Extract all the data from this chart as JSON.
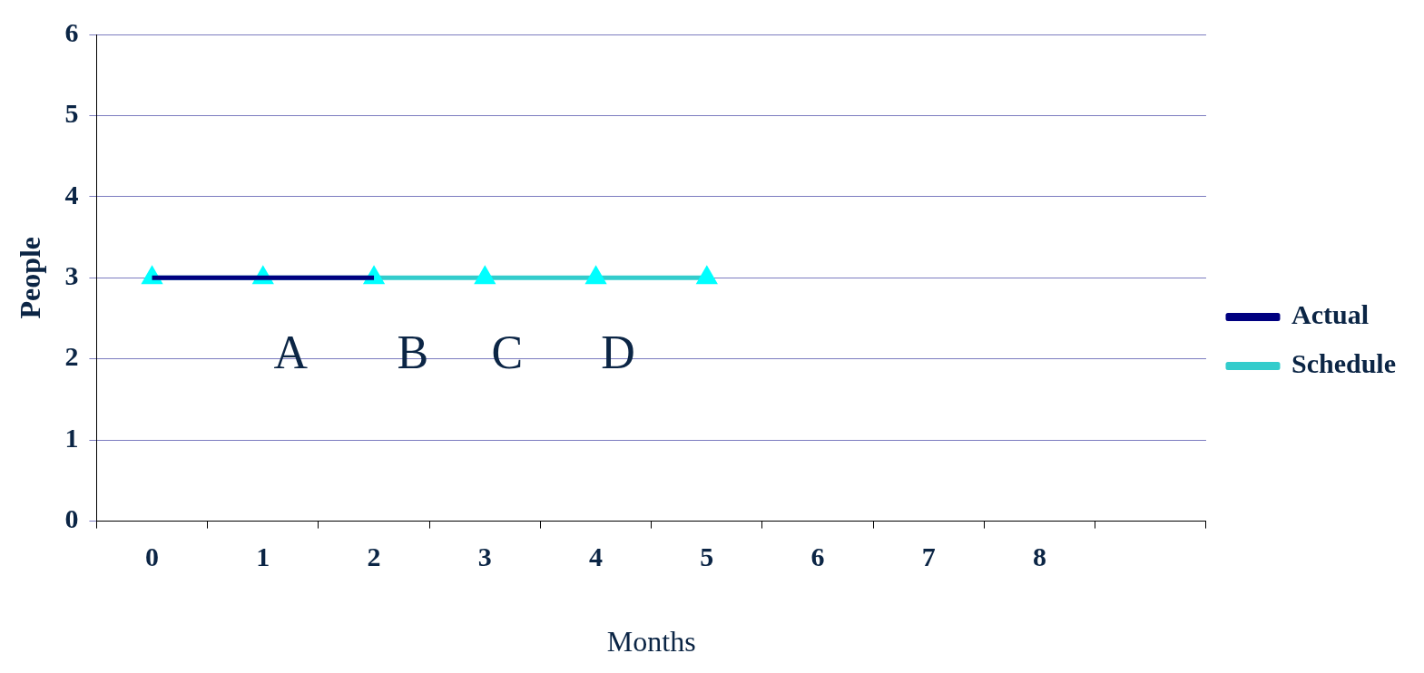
{
  "chart_data": {
    "type": "line",
    "xlabel": "Months",
    "ylabel": "People",
    "categories": [
      "0",
      "1",
      "2",
      "3",
      "4",
      "5",
      "6",
      "7",
      "8",
      null
    ],
    "series": [
      {
        "name": "Schedule",
        "color": "#33cccc",
        "marker": "triangle",
        "values": [
          3,
          3,
          3,
          3,
          3,
          3,
          null,
          null,
          null,
          null
        ]
      },
      {
        "name": "Actual",
        "color": "#000080",
        "marker": "none",
        "values": [
          3,
          3,
          3,
          null,
          null,
          null,
          null,
          null,
          null,
          null
        ]
      }
    ],
    "ylim": [
      0,
      6
    ],
    "yticks": [
      0,
      1,
      2,
      3,
      4,
      5,
      6
    ],
    "grid": "y",
    "legend": "right",
    "annotations": [
      "A",
      "B",
      "C",
      "D"
    ]
  }
}
